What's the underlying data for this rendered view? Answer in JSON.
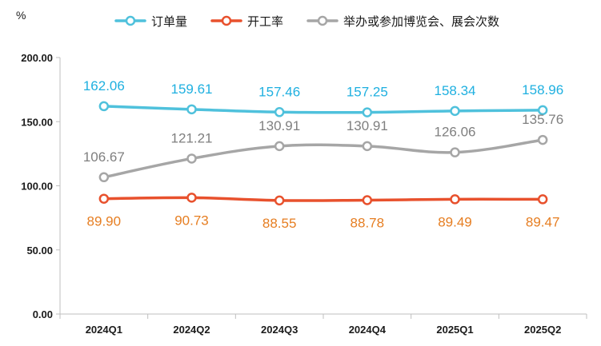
{
  "chart_data": {
    "type": "line",
    "title": "",
    "unit": "%",
    "xlabel": "",
    "ylabel": "",
    "categories": [
      "2024Q1",
      "2024Q2",
      "2024Q3",
      "2024Q4",
      "2025Q1",
      "2025Q2"
    ],
    "ylim": [
      0,
      200
    ],
    "yticks": [
      "0.00",
      "50.00",
      "100.00",
      "150.00",
      "200.00"
    ],
    "grid": false,
    "legend_position": "top",
    "series": [
      {
        "name": "订单量",
        "color": "#4FC1DC",
        "values": [
          162.06,
          159.61,
          157.46,
          157.25,
          158.34,
          158.96
        ],
        "labels": [
          "162.06",
          "159.61",
          "157.46",
          "157.25",
          "158.34",
          "158.96"
        ],
        "label_position": "above"
      },
      {
        "name": "开工率",
        "color": "#E8512D",
        "values": [
          89.9,
          90.73,
          88.55,
          88.78,
          89.49,
          89.47
        ],
        "labels": [
          "89.90",
          "90.73",
          "88.55",
          "88.78",
          "89.49",
          "89.47"
        ],
        "label_position": "below"
      },
      {
        "name": "举办或参加博览会、展会次数",
        "color": "#A6A6A6",
        "values": [
          106.67,
          121.21,
          130.91,
          130.91,
          126.06,
          135.76
        ],
        "labels": [
          "106.67",
          "121.21",
          "130.91",
          "130.91",
          "126.06",
          "135.76"
        ],
        "label_position": "above"
      }
    ],
    "label_colors": {
      "订单量": "#1FB0E0",
      "开工率": "#E67E22",
      "举办或参加博览会、展会次数": "#7F7F7F"
    }
  }
}
